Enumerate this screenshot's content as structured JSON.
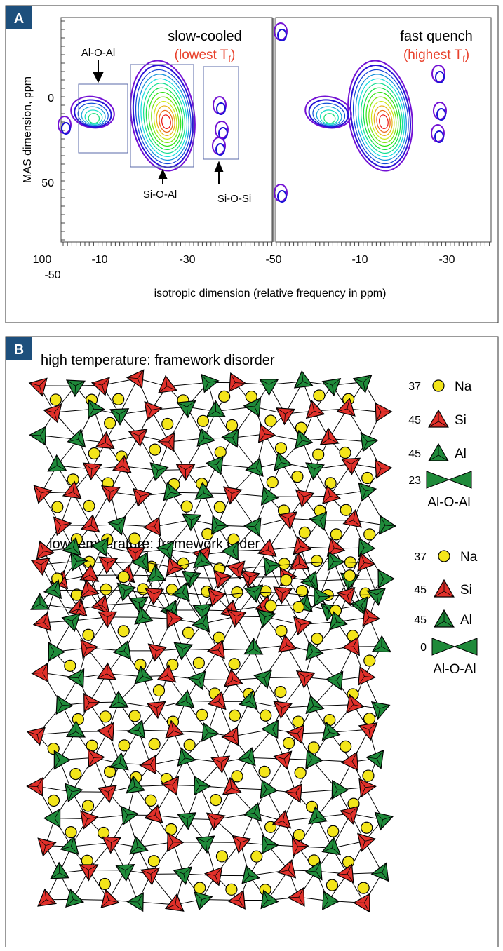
{
  "panel_a": {
    "label": "A",
    "slow_cooled": "slow-cooled",
    "lowest": {
      "pre": "(lowest T",
      "sub": "f",
      "post": ")"
    },
    "fast_quench": "fast quench",
    "highest": {
      "pre": "(highest T",
      "sub": "f",
      "post": ")"
    },
    "annotations": [
      "Al-O-Al",
      "Si-O-Al",
      "Si-O-Si"
    ],
    "y_label": "MAS dimension, ppm",
    "y_tick_labels": [
      "0",
      "50"
    ],
    "x_tick_labels": [
      "100",
      "-10",
      "-30",
      "-50",
      "-10",
      "-30"
    ],
    "x_tick_label_extra": "-50",
    "x_label": "isotropic dimension (relative frequency in ppm)"
  },
  "panel_b": {
    "label": "B",
    "high": {
      "title": "high temperature: framework disorder",
      "legend": [
        {
          "count": 37,
          "name": "Na"
        },
        {
          "count": 45,
          "name": "Si"
        },
        {
          "count": 45,
          "name": "Al"
        },
        {
          "count": 23,
          "name": "Al-O-Al"
        }
      ]
    },
    "low": {
      "title": "low temperature: framework order",
      "legend": [
        {
          "count": 37,
          "name": "Na"
        },
        {
          "count": 45,
          "name": "Si"
        },
        {
          "count": 45,
          "name": "Al"
        },
        {
          "count": 0,
          "name": "Al-O-Al"
        }
      ]
    }
  }
}
